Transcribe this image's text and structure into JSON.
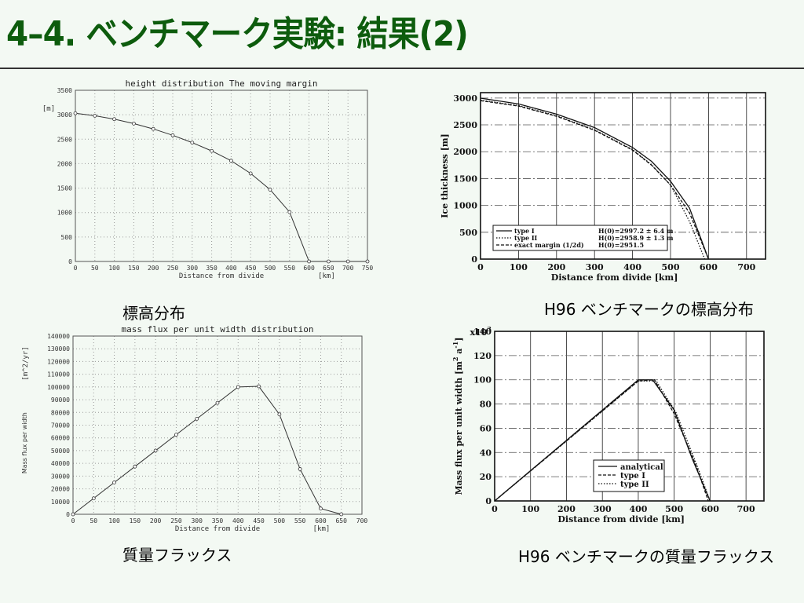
{
  "slide": {
    "title": "4–4. ベンチマーク実験: 結果(2)",
    "captions": {
      "height_left": "標高分布",
      "flux_left": "質量フラックス",
      "height_right": "H96 ベンチマークの標高分布",
      "flux_right": "H96 ベンチマークの質量フラックス"
    }
  },
  "chart_data": [
    {
      "id": "height_model",
      "type": "line",
      "title": "height distribution The moving margin",
      "xlabel": "Distance from divide",
      "xunit": "[km]",
      "yunit": "[m]",
      "xlim": [
        0,
        750
      ],
      "ylim": [
        0,
        3500
      ],
      "xticks": [
        0,
        50,
        100,
        150,
        200,
        250,
        300,
        350,
        400,
        450,
        500,
        550,
        600,
        650,
        700,
        750
      ],
      "yticks": [
        0,
        500,
        1000,
        1500,
        2000,
        2500,
        3000,
        3500
      ],
      "grid": true,
      "markers": true,
      "series": [
        {
          "x": [
            0,
            50,
            100,
            150,
            200,
            250,
            300,
            350,
            400,
            450,
            500,
            550,
            600,
            650,
            700,
            750
          ],
          "y": [
            3030,
            2980,
            2910,
            2820,
            2710,
            2580,
            2430,
            2260,
            2060,
            1800,
            1470,
            1010,
            0,
            0,
            0,
            0
          ]
        }
      ]
    },
    {
      "id": "height_h96",
      "type": "line",
      "xlabel": "Distance from divide  [km]",
      "ylabel": "Ice thickness  [m]",
      "xlim": [
        0,
        750
      ],
      "ylim": [
        0,
        3100
      ],
      "xticks": [
        0,
        100,
        200,
        300,
        400,
        500,
        600,
        700
      ],
      "yticks": [
        0,
        500,
        1000,
        1500,
        2000,
        2500,
        3000
      ],
      "grid": true,
      "legend": "bottom-left",
      "legend_labels": [
        {
          "name": "type I",
          "value": "H(0)=2997.2 ± 6.4 m"
        },
        {
          "name": "type II",
          "value": "H(0)=2958.9 ± 1.3 m"
        },
        {
          "name": "exact margin (1/2d)",
          "value": "H(0)=2951.5"
        }
      ],
      "series": [
        {
          "name": "type I",
          "style": "solid",
          "x": [
            0,
            100,
            200,
            300,
            400,
            450,
            500,
            550,
            600
          ],
          "y": [
            2997,
            2890,
            2700,
            2450,
            2080,
            1820,
            1450,
            950,
            0
          ]
        },
        {
          "name": "type II",
          "style": "dotted",
          "x": [
            0,
            100,
            200,
            300,
            400,
            450,
            500,
            550,
            590
          ],
          "y": [
            2959,
            2860,
            2670,
            2410,
            2040,
            1760,
            1380,
            700,
            0
          ]
        },
        {
          "name": "exact margin (1/2d)",
          "style": "dashed",
          "x": [
            0,
            100,
            200,
            300,
            400,
            450,
            500,
            550,
            600
          ],
          "y": [
            2951,
            2850,
            2660,
            2400,
            2030,
            1750,
            1380,
            860,
            0
          ]
        }
      ]
    },
    {
      "id": "flux_model",
      "type": "line",
      "title": "mass flux per unit width  distribution",
      "xlabel": "Distance from divide",
      "xunit": "[km]",
      "ylabel": "Mass flux per width",
      "yunit": "[m^2/yr]",
      "xlim": [
        0,
        700
      ],
      "ylim": [
        0,
        140000
      ],
      "xticks": [
        0,
        50,
        100,
        150,
        200,
        250,
        300,
        350,
        400,
        450,
        500,
        550,
        600,
        650,
        700
      ],
      "yticks": [
        0,
        10000,
        20000,
        30000,
        40000,
        50000,
        60000,
        70000,
        80000,
        90000,
        100000,
        110000,
        120000,
        130000,
        140000
      ],
      "grid": true,
      "markers": true,
      "series": [
        {
          "x": [
            0,
            50,
            100,
            150,
            200,
            250,
            300,
            350,
            400,
            450,
            500,
            550,
            600,
            650
          ],
          "y": [
            0,
            12500,
            25000,
            37500,
            50000,
            62500,
            75000,
            87500,
            100000,
            100500,
            78500,
            35500,
            4500,
            0
          ]
        }
      ]
    },
    {
      "id": "flux_h96",
      "type": "line",
      "xlabel": "Distance from divide  [km]",
      "ylabel": "Mass flux per unit width  [m",
      "ylabel_sup1": "2",
      "ylabel_mid": " a",
      "ylabel_sup2": "-1",
      "ylabel_end": "]",
      "ymult": "x10",
      "ymult_exp": "3",
      "xlim": [
        0,
        750
      ],
      "ylim": [
        0,
        140
      ],
      "xticks": [
        0,
        100,
        200,
        300,
        400,
        500,
        600,
        700
      ],
      "yticks": [
        0,
        20,
        40,
        60,
        80,
        100,
        120,
        140
      ],
      "grid": true,
      "legend": "bottom-right",
      "series": [
        {
          "name": "analytical",
          "style": "solid",
          "x": [
            0,
            400,
            440,
            500,
            550,
            600
          ],
          "y": [
            0,
            100,
            100,
            75,
            35,
            0
          ]
        },
        {
          "name": "type I",
          "style": "dashed",
          "x": [
            0,
            400,
            445,
            500,
            560,
            595
          ],
          "y": [
            0,
            99,
            100,
            72,
            30,
            0
          ]
        },
        {
          "name": "type II",
          "style": "dotted",
          "x": [
            0,
            400,
            450,
            505,
            565,
            600
          ],
          "y": [
            0,
            99,
            99,
            73,
            28,
            0
          ]
        }
      ]
    }
  ]
}
